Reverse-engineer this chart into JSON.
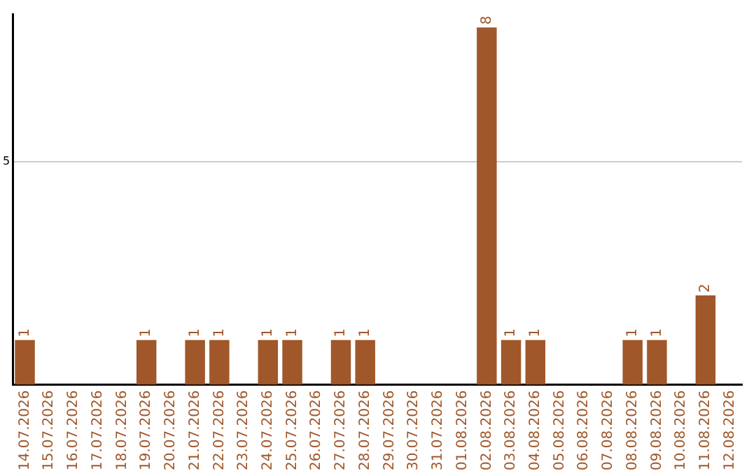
{
  "chart_data": {
    "type": "bar",
    "categories": [
      "14.07.2026",
      "15.07.2026",
      "16.07.2026",
      "17.07.2026",
      "18.07.2026",
      "19.07.2026",
      "20.07.2026",
      "21.07.2026",
      "22.07.2026",
      "23.07.2026",
      "24.07.2026",
      "25.07.2026",
      "26.07.2026",
      "27.07.2026",
      "28.07.2026",
      "29.07.2026",
      "30.07.2026",
      "31.07.2026",
      "01.08.2026",
      "02.08.2026",
      "03.08.2026",
      "04.08.2026",
      "05.08.2026",
      "06.08.2026",
      "07.08.2026",
      "08.08.2026",
      "09.08.2026",
      "10.08.2026",
      "11.08.2026",
      "12.08.2026"
    ],
    "values": [
      1,
      0,
      0,
      0,
      0,
      1,
      0,
      1,
      1,
      0,
      1,
      1,
      0,
      1,
      1,
      0,
      0,
      0,
      0,
      8,
      1,
      1,
      0,
      0,
      0,
      1,
      1,
      0,
      2,
      0
    ],
    "value_labels": [
      "1",
      null,
      null,
      null,
      null,
      "1",
      null,
      "1",
      "1",
      null,
      "1",
      "1",
      null,
      "1",
      "1",
      null,
      null,
      null,
      null,
      "8",
      "1",
      "1",
      null,
      null,
      null,
      "1",
      "1",
      null,
      "2",
      null
    ],
    "color": "#a0572a",
    "ylim": [
      0,
      8.3
    ],
    "yticks": [
      5
    ],
    "grid": "y",
    "legend": false
  }
}
